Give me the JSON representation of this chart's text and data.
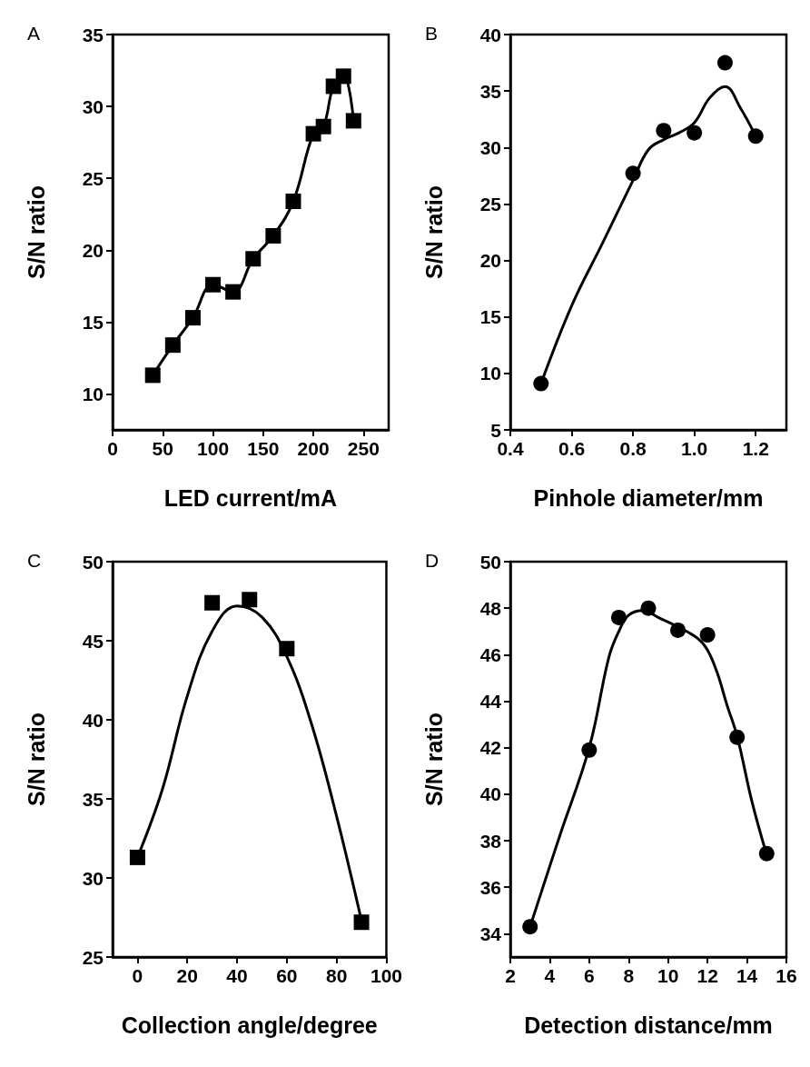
{
  "chart_data": [
    {
      "type": "scatter",
      "annotations": [
        "A"
      ],
      "xlabel": "LED current/mA",
      "ylabel": "S/N ratio",
      "xlim": [
        0,
        275
      ],
      "xticks": [
        0,
        50,
        100,
        150,
        200,
        250
      ],
      "ylim": [
        7.5,
        35
      ],
      "yticks": [
        10,
        15,
        20,
        25,
        30,
        35
      ],
      "grid": false,
      "series": [
        {
          "marker": "square",
          "color": "#000000",
          "x": [
            40,
            60,
            80,
            100,
            120,
            140,
            160,
            180,
            200,
            210,
            220,
            230,
            240
          ],
          "values": [
            11.3,
            13.4,
            15.3,
            17.6,
            17.1,
            19.4,
            21.0,
            23.4,
            28.1,
            28.6,
            31.4,
            32.1,
            29.0
          ]
        },
        {
          "type": "line",
          "marker": "none",
          "line_style": "solid",
          "color": "#000000",
          "x": [
            40,
            60,
            80,
            100,
            120,
            140,
            160,
            180,
            200,
            210,
            220,
            230,
            240
          ],
          "values": [
            11.3,
            13.4,
            15.3,
            17.6,
            17.1,
            19.4,
            21.0,
            23.4,
            28.1,
            28.6,
            31.4,
            32.1,
            29.0
          ]
        }
      ]
    },
    {
      "type": "scatter",
      "annotations": [
        "B"
      ],
      "xlabel": "Pinhole diameter/mm",
      "ylabel": "S/N ratio",
      "xlim": [
        0.4,
        1.3
      ],
      "xticks": [
        0.4,
        0.6,
        0.8,
        {
          "value": 1,
          "label": "1.0"
        },
        1.2
      ],
      "ylim": [
        5,
        40
      ],
      "yticks": [
        5,
        10,
        15,
        20,
        25,
        30,
        35,
        40
      ],
      "grid": false,
      "series": [
        {
          "marker": "circle",
          "color": "#000000",
          "x": [
            0.5,
            0.8,
            0.9,
            1.0,
            1.1,
            1.2
          ],
          "values": [
            9.1,
            27.7,
            31.5,
            31.3,
            37.5,
            31.0
          ]
        },
        {
          "type": "line",
          "marker": "none",
          "line_style": "solid",
          "color": "#000000",
          "x": [
            0.5,
            0.6,
            0.7,
            0.8,
            0.85,
            0.9,
            0.95,
            1.0,
            1.05,
            1.1,
            1.15,
            1.2
          ],
          "values": [
            9.1,
            16.0,
            21.5,
            27.1,
            29.8,
            30.7,
            31.3,
            32.2,
            34.4,
            35.4,
            33.5,
            31.0
          ]
        }
      ]
    },
    {
      "type": "scatter",
      "annotations": [
        "C"
      ],
      "xlabel": "Collection angle/degree",
      "ylabel": "S/N ratio",
      "xlim": [
        -10,
        100
      ],
      "xticks": [
        0,
        20,
        40,
        60,
        80,
        100
      ],
      "ylim": [
        25,
        50
      ],
      "yticks": [
        25,
        30,
        35,
        40,
        45,
        50
      ],
      "grid": false,
      "series": [
        {
          "marker": "square",
          "color": "#000000",
          "x": [
            0,
            30,
            45,
            60,
            90
          ],
          "values": [
            31.3,
            47.4,
            47.6,
            44.5,
            27.2
          ]
        },
        {
          "type": "line",
          "marker": "none",
          "line_style": "solid",
          "color": "#000000",
          "x": [
            0,
            10,
            20,
            30,
            40,
            50,
            60,
            70,
            80,
            90
          ],
          "values": [
            31.3,
            35.6,
            41.5,
            45.6,
            47.2,
            46.5,
            44.0,
            39.7,
            33.9,
            27.3
          ]
        }
      ]
    },
    {
      "type": "scatter",
      "annotations": [
        "D"
      ],
      "xlabel": "Detection distance/mm",
      "ylabel": "S/N ratio",
      "xlim": [
        2,
        16
      ],
      "xticks": [
        2,
        4,
        6,
        8,
        10,
        12,
        14,
        16
      ],
      "ylim": [
        33,
        50
      ],
      "yticks": [
        34,
        36,
        38,
        40,
        42,
        44,
        46,
        48,
        50
      ],
      "grid": false,
      "series": [
        {
          "marker": "circle",
          "color": "#000000",
          "x": [
            3,
            6,
            7.5,
            9,
            10.5,
            12,
            13.5,
            15
          ],
          "values": [
            34.3,
            41.9,
            47.6,
            48.0,
            47.05,
            46.85,
            42.45,
            37.45
          ]
        },
        {
          "type": "line",
          "marker": "none",
          "line_style": "solid",
          "color": "#000000",
          "x": [
            3,
            4.5,
            6,
            7,
            7.5,
            8,
            8.75,
            9.5,
            10.5,
            11.5,
            12,
            12.5,
            13,
            13.5,
            14.25,
            15
          ],
          "values": [
            34.3,
            38.2,
            42.0,
            45.9,
            47.0,
            47.7,
            47.9,
            47.6,
            47.2,
            46.7,
            46.2,
            45.2,
            43.8,
            42.5,
            39.7,
            37.4
          ]
        }
      ]
    }
  ]
}
